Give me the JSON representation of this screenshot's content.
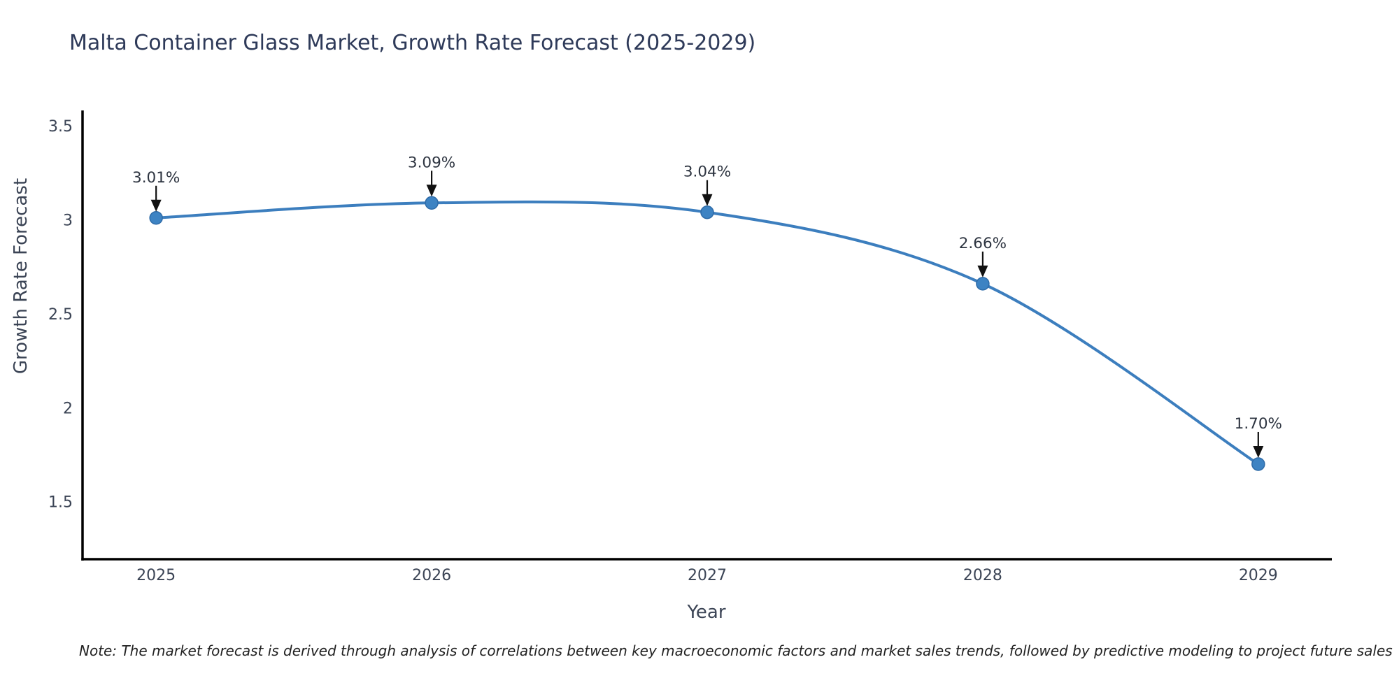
{
  "note": "Note: The market forecast is derived through analysis of correlations between key macroeconomic factors and market sales trends, followed by predictive modeling to project future sales",
  "chart_data": {
    "type": "line",
    "title": "Malta Container Glass Market, Growth Rate Forecast (2025-2029)",
    "xlabel": "Year",
    "ylabel": "Growth Rate Forecast",
    "x": [
      2025,
      2026,
      2027,
      2028,
      2029
    ],
    "series": [
      {
        "name": "Growth Rate Forecast",
        "values": [
          3.01,
          3.09,
          3.04,
          2.66,
          1.7
        ],
        "point_labels": [
          "3.01%",
          "3.09%",
          "3.04%",
          "2.66%",
          "1.70%"
        ]
      }
    ],
    "line_shape": "spline",
    "markers": true,
    "annotation_style": "arrow-down",
    "xticks": {
      "values": [
        2025,
        2026,
        2027,
        2028,
        2029
      ],
      "labels": [
        "2025",
        "2026",
        "2027",
        "2028",
        "2029"
      ]
    },
    "yticks": {
      "values": [
        1.5,
        2,
        2.5,
        3,
        3.5
      ],
      "labels": [
        "1.5",
        "2",
        "2.5",
        "3",
        "3.5"
      ]
    },
    "xlim": [
      2024.733,
      2029.267
    ],
    "ylim": [
      1.194,
      3.582
    ],
    "grid": false,
    "legend": "none",
    "colors": {
      "line": "#3c7ebe",
      "marker_fill": "#3d83c3",
      "marker_edge": "#2e6ba8",
      "axis_line": "#000000",
      "tick_text": "#3b4455",
      "annotation_text": "#2d3440",
      "annotation_arrow": "#111111",
      "title_text": "#2e3a59",
      "background": "#ffffff"
    }
  }
}
